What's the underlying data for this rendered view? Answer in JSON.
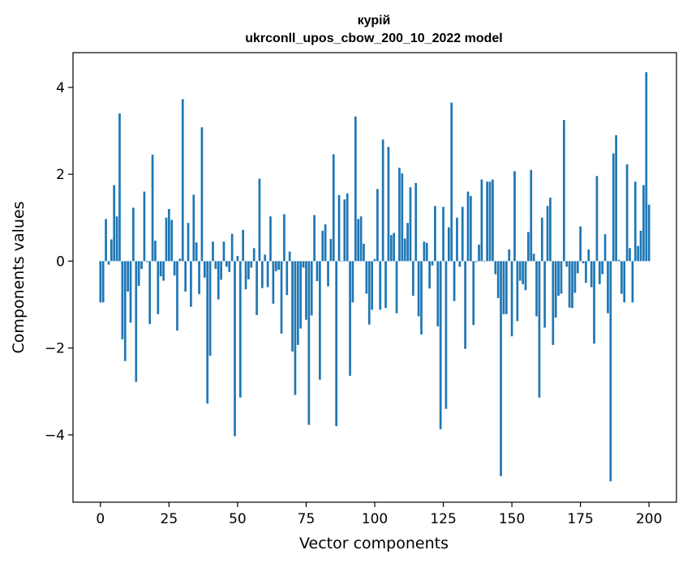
{
  "chart_data": {
    "type": "bar",
    "title": "курій",
    "subtitle": "ukrconll_upos_cbow_200_10_2022 model",
    "xlabel": "Vector components",
    "ylabel": "Components values",
    "xlim": [
      -10,
      210
    ],
    "ylim": [
      -5.55,
      4.8
    ],
    "xticks": [
      0,
      25,
      50,
      75,
      100,
      125,
      150,
      175,
      200
    ],
    "yticks": [
      -4,
      -2,
      0,
      2,
      4
    ],
    "ytick_labels": [
      "−4",
      "−2",
      "0",
      "2",
      "4"
    ],
    "grid": false,
    "color": "#1f77b4",
    "values": [
      -0.95,
      -0.95,
      0.97,
      -0.08,
      0.5,
      1.75,
      1.03,
      3.4,
      -1.8,
      -2.3,
      -0.7,
      -1.42,
      1.23,
      -2.78,
      -0.57,
      -0.18,
      1.6,
      -0.02,
      -1.45,
      2.45,
      0.47,
      -1.22,
      -0.35,
      -0.45,
      1.0,
      1.2,
      0.95,
      -0.33,
      -1.6,
      0.06,
      3.73,
      -0.7,
      0.88,
      -1.05,
      1.53,
      0.43,
      -0.76,
      3.08,
      -0.38,
      -3.28,
      -2.18,
      0.45,
      -0.18,
      -0.88,
      -0.43,
      0.45,
      -0.13,
      -0.25,
      0.63,
      -4.03,
      0.12,
      -3.14,
      0.72,
      -0.65,
      -0.42,
      -0.15,
      0.3,
      -1.24,
      1.9,
      -0.62,
      0.15,
      -0.6,
      1.03,
      -0.98,
      -0.23,
      -0.2,
      -1.67,
      1.08,
      -0.78,
      0.22,
      -2.08,
      -3.08,
      -1.93,
      -1.55,
      -0.15,
      -1.35,
      -3.77,
      -1.25,
      1.06,
      -0.46,
      -2.73,
      0.7,
      0.85,
      -0.58,
      0.51,
      2.46,
      -3.8,
      1.52,
      0.0,
      1.42,
      1.56,
      -2.64,
      -0.95,
      3.33,
      0.97,
      1.03,
      0.4,
      -0.75,
      -1.46,
      -1.12,
      0.05,
      1.66,
      -1.12,
      2.8,
      -1.08,
      2.63,
      0.6,
      0.65,
      -1.2,
      2.15,
      2.02,
      0.52,
      0.88,
      1.7,
      -0.8,
      1.8,
      -1.27,
      -1.69,
      0.45,
      0.42,
      -0.63,
      -0.1,
      1.27,
      -1.5,
      -3.87,
      1.25,
      -3.4,
      0.78,
      3.65,
      -0.92,
      1.0,
      -0.13,
      1.25,
      -2.02,
      1.6,
      1.5,
      -1.47,
      -0.02,
      0.38,
      1.88,
      0.0,
      1.83,
      1.83,
      1.88,
      -0.3,
      -0.85,
      -4.95,
      -1.22,
      -1.22,
      0.27,
      -1.73,
      2.07,
      -1.38,
      -0.45,
      -0.53,
      -0.67,
      0.67,
      2.1,
      0.17,
      -1.27,
      -3.14,
      1.0,
      -1.53,
      1.27,
      1.46,
      -1.93,
      -1.3,
      -0.8,
      -0.75,
      3.25,
      -0.13,
      -1.07,
      -1.08,
      -0.73,
      -0.28,
      0.8,
      -0.05,
      -0.5,
      0.27,
      -0.6,
      -1.9,
      1.96,
      -0.53,
      -0.3,
      0.62,
      -1.2,
      -5.07,
      2.48,
      2.9,
      0.03,
      -0.75,
      -0.95,
      2.23,
      0.3,
      -0.95,
      1.83,
      0.35,
      0.7,
      1.75,
      4.35,
      1.3
    ]
  }
}
